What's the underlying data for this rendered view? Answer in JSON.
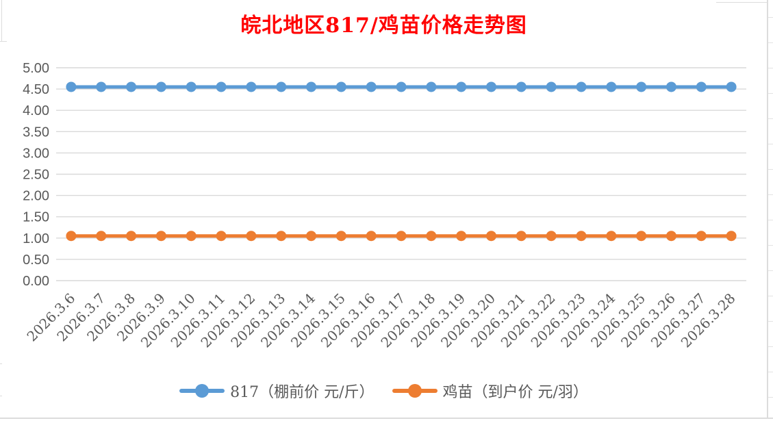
{
  "chart_data": {
    "type": "line",
    "title": "皖北地区817/鸡苗价格走势图",
    "title_color": "#FF0000",
    "categories": [
      "2026.3.6",
      "2026.3.7",
      "2026.3.8",
      "2026.3.9",
      "2026.3.10",
      "2026.3.11",
      "2026.3.12",
      "2026.3.13",
      "2026.3.14",
      "2026.3.15",
      "2026.3.16",
      "2026.3.17",
      "2026.3.18",
      "2026.3.19",
      "2026.3.20",
      "2026.3.21",
      "2026.3.22",
      "2026.3.23",
      "2026.3.24",
      "2026.3.25",
      "2026.3.26",
      "2026.3.27",
      "2026.3.28"
    ],
    "series": [
      {
        "name": "817（棚前价 元/斤）",
        "color": "#5B9BD5",
        "values": [
          4.55,
          4.55,
          4.55,
          4.55,
          4.55,
          4.55,
          4.55,
          4.55,
          4.55,
          4.55,
          4.55,
          4.55,
          4.55,
          4.55,
          4.55,
          4.55,
          4.55,
          4.55,
          4.55,
          4.55,
          4.55,
          4.55,
          4.55
        ]
      },
      {
        "name": "鸡苗（到户价 元/羽）",
        "color": "#ED7D31",
        "values": [
          1.05,
          1.05,
          1.05,
          1.05,
          1.05,
          1.05,
          1.05,
          1.05,
          1.05,
          1.05,
          1.05,
          1.05,
          1.05,
          1.05,
          1.05,
          1.05,
          1.05,
          1.05,
          1.05,
          1.05,
          1.05,
          1.05,
          1.05
        ]
      }
    ],
    "ylim": [
      0,
      5
    ],
    "y_tick_labels": [
      "0.00",
      "0.50",
      "1.00",
      "1.50",
      "2.00",
      "2.50",
      "3.00",
      "3.50",
      "4.00",
      "4.50",
      "5.00"
    ],
    "grid": true,
    "gridline_color": "#D9D9D9",
    "axis_text_color": "#595959",
    "legend_position": "bottom",
    "x_label_rotation_deg": -45
  }
}
